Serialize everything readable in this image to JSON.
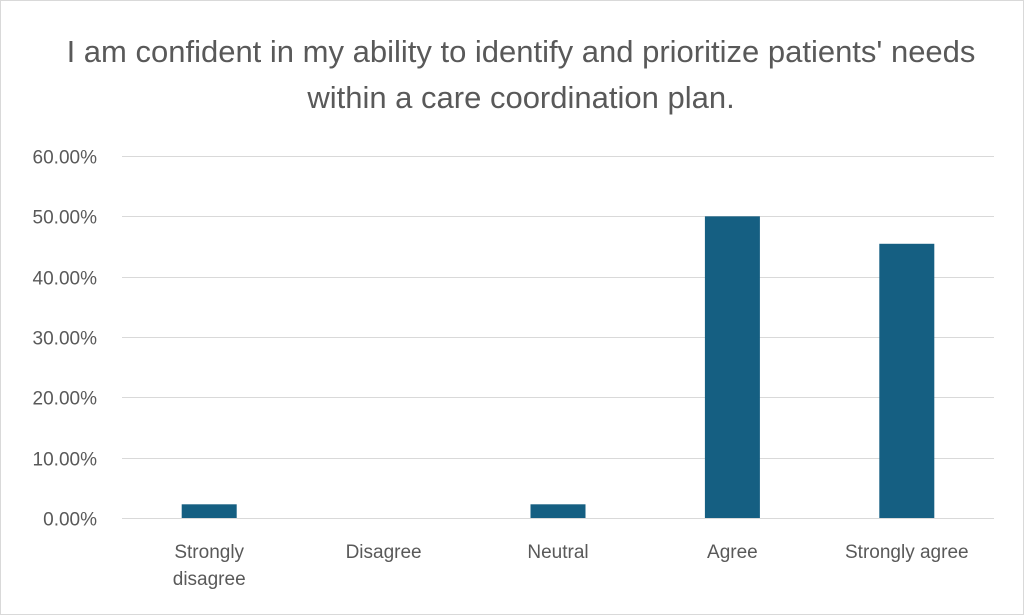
{
  "chart_data": {
    "type": "bar",
    "title": "I am confident in my ability to identify and prioritize patients' needs within a care coordination plan.",
    "categories": [
      "Strongly disagree",
      "Disagree",
      "Neutral",
      "Agree",
      "Strongly agree"
    ],
    "category_lines": [
      [
        "Strongly",
        "disagree"
      ],
      [
        "Disagree"
      ],
      [
        "Neutral"
      ],
      [
        "Agree"
      ],
      [
        "Strongly agree"
      ]
    ],
    "values": [
      2.27,
      0.0,
      2.27,
      50.0,
      45.45
    ],
    "y_tick_labels": [
      "0.00%",
      "10.00%",
      "20.00%",
      "30.00%",
      "40.00%",
      "50.00%",
      "60.00%"
    ],
    "y_ticks": [
      0,
      10,
      20,
      30,
      40,
      50,
      60
    ],
    "ylim": [
      0,
      60
    ],
    "xlabel": "",
    "ylabel": "",
    "grid": true,
    "legend": "none",
    "bar_color": "#155f82",
    "grid_color": "#d9d9d9",
    "text_color": "#595959"
  }
}
